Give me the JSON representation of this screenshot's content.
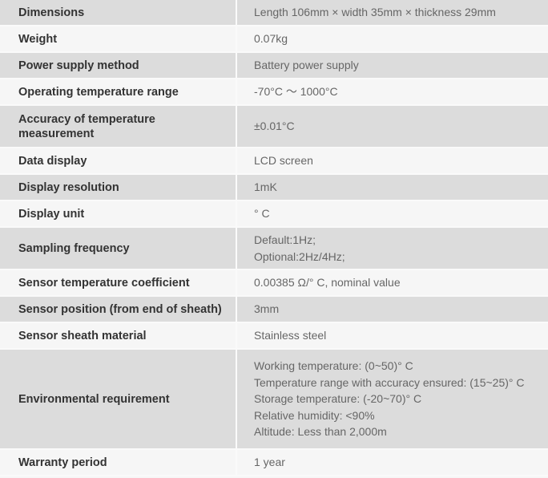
{
  "colors": {
    "row_gray": "#dcdcdc",
    "row_light": "#f6f6f6",
    "label_text": "#333333",
    "value_text": "#666666"
  },
  "rows": [
    {
      "label": "Dimensions",
      "values": [
        "Length 106mm × width 35mm × thickness 29mm"
      ]
    },
    {
      "label": "Weight",
      "values": [
        "0.07kg"
      ]
    },
    {
      "label": "Power supply method",
      "values": [
        "Battery power supply"
      ]
    },
    {
      "label": "Operating temperature range",
      "values": [
        "-70°C ～ 1000°C"
      ]
    },
    {
      "label": "Accuracy of temperature measurement",
      "values": [
        "±0.01°C"
      ]
    },
    {
      "label": "Data display",
      "values": [
        "LCD screen"
      ]
    },
    {
      "label": "Display resolution",
      "values": [
        "1mK"
      ]
    },
    {
      "label": "Display unit",
      "values": [
        "° C"
      ]
    },
    {
      "label": "Sampling frequency",
      "values": [
        "Default:1Hz;",
        "Optional:2Hz/4Hz;"
      ]
    },
    {
      "label": "Sensor temperature coefficient",
      "values": [
        "0.00385 Ω/° C, nominal value"
      ]
    },
    {
      "label": "Sensor position (from end of sheath)",
      "values": [
        "3mm"
      ]
    },
    {
      "label": "Sensor sheath material",
      "values": [
        "Stainless steel"
      ]
    },
    {
      "label": "Environmental requirement",
      "values": [
        "Working temperature: (0~50)° C",
        "Temperature range with accuracy ensured: (15~25)° C",
        "Storage temperature: (-20~70)° C",
        "Relative humidity: <90%",
        "Altitude: Less than 2,000m"
      ]
    },
    {
      "label": "Warranty period",
      "values": [
        "1 year"
      ]
    }
  ]
}
